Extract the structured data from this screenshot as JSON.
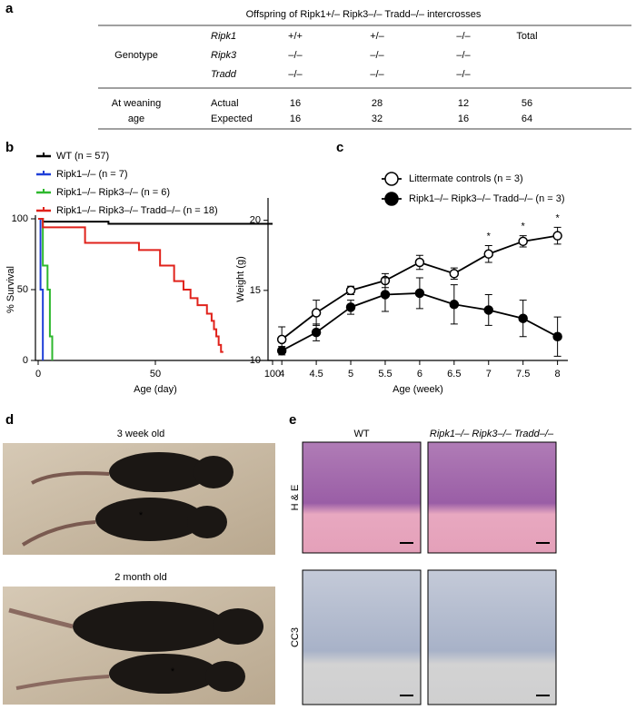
{
  "panel_letters": [
    "a",
    "b",
    "c",
    "d",
    "e"
  ],
  "table": {
    "title": "Offspring of Ripk1+/– Ripk3–/– Tradd–/– intercrosses",
    "group1": "Genotype",
    "group2": [
      "At weaning",
      "age"
    ],
    "genes": [
      "Ripk1",
      "Ripk3",
      "Tradd"
    ],
    "genotype_rows": [
      [
        "+/+",
        "+/–",
        "–/–",
        "Total"
      ],
      [
        "–/–",
        "–/–",
        "–/–"
      ],
      [
        "–/–",
        "–/–",
        "–/–"
      ]
    ],
    "count_rows": [
      {
        "label": "Actual",
        "cells": [
          16,
          28,
          12,
          56
        ]
      },
      {
        "label": "Expected",
        "cells": [
          16,
          32,
          16,
          64
        ]
      }
    ]
  },
  "chart_data": [
    {
      "type": "survival",
      "ylabel": "% Survival",
      "xlabel": "Age (day)",
      "xlim": [
        0,
        100
      ],
      "xticks": [
        0,
        50,
        100
      ],
      "ylim": [
        0,
        100
      ],
      "yticks": [
        0,
        50,
        100
      ],
      "series": [
        {
          "name": "WT (n = 57)",
          "color": "#000000",
          "x": [
            0,
            2,
            2,
            30,
            30,
            100
          ],
          "values": [
            100,
            100,
            98,
            98,
            96.5,
            96.5
          ]
        },
        {
          "name": "Ripk1–/– (n = 7)",
          "color": "#1f3fd8",
          "x": [
            0,
            1,
            1,
            2,
            2
          ],
          "values": [
            100,
            100,
            50,
            50,
            0
          ]
        },
        {
          "name": "Ripk1–/– Ripk3–/– (n = 6)",
          "color": "#2eb82e",
          "x": [
            0,
            2,
            2,
            4,
            4,
            5,
            5,
            6,
            6
          ],
          "values": [
            100,
            100,
            67,
            67,
            50,
            50,
            17,
            17,
            0
          ]
        },
        {
          "name": "Ripk1–/– Ripk3–/– Tradd–/– (n = 18)",
          "color": "#e0221b",
          "x": [
            0,
            2,
            2,
            20,
            20,
            43,
            43,
            52,
            52,
            58,
            58,
            62,
            62,
            65,
            65,
            68,
            68,
            72,
            72,
            74,
            74,
            75,
            75,
            76,
            76,
            77,
            77,
            78,
            78,
            79
          ],
          "values": [
            100,
            100,
            94,
            94,
            83,
            83,
            78,
            78,
            67,
            67,
            56,
            56,
            50,
            50,
            44,
            44,
            39,
            39,
            33,
            33,
            28,
            28,
            22,
            22,
            17,
            17,
            11,
            11,
            6,
            6
          ]
        }
      ]
    },
    {
      "type": "line",
      "ylabel": "Weight (g)",
      "xlabel": "Age (week)",
      "x": [
        4,
        4.5,
        5,
        5.5,
        6,
        6.5,
        7,
        7.5,
        8
      ],
      "xlim": [
        3.8,
        8.15
      ],
      "xticks": [
        4,
        4.5,
        5,
        5.5,
        6,
        6.5,
        7,
        7.5,
        8
      ],
      "ylim": [
        10,
        21.6
      ],
      "yticks": [
        10,
        15,
        20
      ],
      "series": [
        {
          "name": "Littermate controls (n = 3)",
          "color": "#000000",
          "fill": "#ffffff",
          "values": [
            11.5,
            13.4,
            15.0,
            15.7,
            17.0,
            16.2,
            17.6,
            18.5,
            18.9
          ],
          "errors": [
            0.9,
            0.9,
            0.3,
            0.5,
            0.5,
            0.4,
            0.6,
            0.4,
            0.6
          ]
        },
        {
          "name": "Ripk1–/– Ripk3–/– Tradd–/– (n = 3)",
          "color": "#000000",
          "fill": "#000000",
          "values": [
            10.7,
            12.0,
            13.8,
            14.7,
            14.8,
            14.0,
            13.6,
            13.0,
            11.7
          ],
          "errors": [
            0.3,
            0.6,
            0.5,
            1.2,
            1.1,
            1.4,
            1.1,
            1.3,
            1.4
          ]
        }
      ],
      "annotations": [
        {
          "x": 7,
          "text": "*"
        },
        {
          "x": 7.5,
          "text": "*"
        },
        {
          "x": 8,
          "text": "*"
        }
      ]
    }
  ],
  "photos": {
    "ages": [
      "3 week old",
      "2 month old"
    ],
    "asterisk": "*",
    "columns": [
      "WT",
      "Ripk1–/– Ripk3–/– Tradd–/–"
    ],
    "rows": [
      "H & E",
      "CC3"
    ]
  }
}
